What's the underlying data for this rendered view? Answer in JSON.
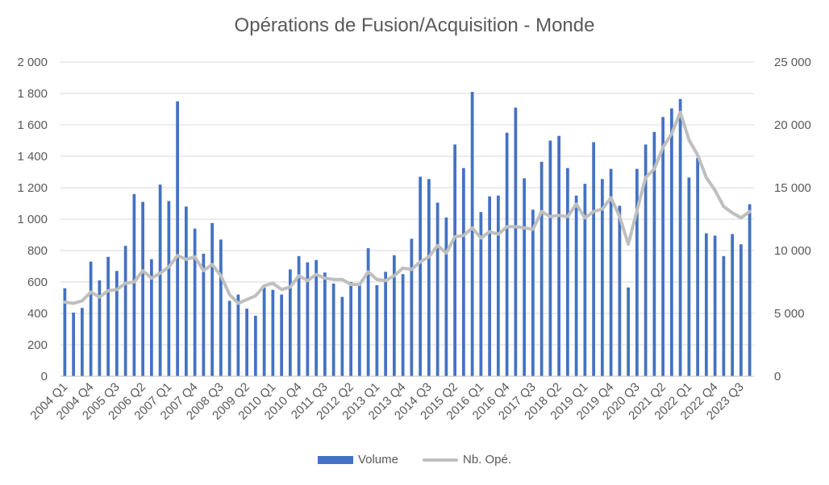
{
  "chart_data": {
    "type": "bar",
    "title": "Opérations de Fusion/Acquisition - Monde",
    "categories": [
      "2004 Q1",
      "2004 Q2",
      "2004 Q3",
      "2004 Q4",
      "2005 Q1",
      "2005 Q2",
      "2005 Q3",
      "2005 Q4",
      "2006 Q1",
      "2006 Q2",
      "2006 Q3",
      "2006 Q4",
      "2007 Q1",
      "2007 Q2",
      "2007 Q3",
      "2007 Q4",
      "2008 Q1",
      "2008 Q2",
      "2008 Q3",
      "2008 Q4",
      "2009 Q1",
      "2009 Q2",
      "2009 Q3",
      "2009 Q4",
      "2010 Q1",
      "2010 Q2",
      "2010 Q3",
      "2010 Q4",
      "2011 Q1",
      "2011 Q2",
      "2011 Q3",
      "2011 Q4",
      "2012 Q1",
      "2012 Q2",
      "2012 Q3",
      "2012 Q4",
      "2013 Q1",
      "2013 Q2",
      "2013 Q3",
      "2013 Q4",
      "2014 Q1",
      "2014 Q2",
      "2014 Q3",
      "2014 Q4",
      "2015 Q1",
      "2015 Q2",
      "2015 Q3",
      "2015 Q4",
      "2016 Q1",
      "2016 Q2",
      "2016 Q3",
      "2016 Q4",
      "2017 Q1",
      "2017 Q2",
      "2017 Q3",
      "2017 Q4",
      "2018 Q1",
      "2018 Q2",
      "2018 Q3",
      "2018 Q4",
      "2019 Q1",
      "2019 Q2",
      "2019 Q3",
      "2019 Q4",
      "2020 Q1",
      "2020 Q2",
      "2020 Q3",
      "2020 Q4",
      "2021 Q1",
      "2021 Q2",
      "2021 Q3",
      "2021 Q4",
      "2022 Q1",
      "2022 Q2",
      "2022 Q3",
      "2022 Q4",
      "2023 Q1",
      "2023 Q2",
      "2023 Q3",
      "2023 Q4"
    ],
    "x_tick_labels": [
      "2004 Q1",
      "2004 Q4",
      "2005 Q3",
      "2006 Q2",
      "2007 Q1",
      "2007 Q4",
      "2008 Q3",
      "2009 Q2",
      "2010 Q1",
      "2010 Q4",
      "2011 Q3",
      "2012 Q2",
      "2013 Q1",
      "2013 Q4",
      "2014 Q3",
      "2015 Q2",
      "2016 Q1",
      "2016 Q4",
      "2017 Q3",
      "2018 Q2",
      "2019 Q1",
      "2019 Q4",
      "2020 Q3",
      "2021 Q2",
      "2022 Q1",
      "2022 Q4",
      "2023 Q3"
    ],
    "series": [
      {
        "name": "Volume",
        "kind": "bar",
        "axis": "left",
        "color": "#4472c4",
        "values": [
          560,
          405,
          435,
          730,
          610,
          760,
          670,
          830,
          1160,
          1110,
          745,
          1220,
          1115,
          1750,
          1080,
          940,
          780,
          975,
          870,
          480,
          520,
          430,
          385,
          565,
          550,
          520,
          680,
          765,
          725,
          740,
          660,
          590,
          505,
          600,
          590,
          815,
          580,
          665,
          770,
          650,
          875,
          1270,
          1255,
          1105,
          1010,
          1475,
          1325,
          1810,
          1045,
          1145,
          1150,
          1550,
          1710,
          1260,
          1060,
          1365,
          1500,
          1530,
          1325,
          1150,
          1225,
          1490,
          1255,
          1320,
          1085,
          565,
          1320,
          1475,
          1555,
          1650,
          1705,
          1765,
          1265,
          1390,
          910,
          895,
          765,
          905,
          840,
          1095
        ]
      },
      {
        "name": "Nb. Opé.",
        "kind": "line",
        "axis": "right",
        "color": "#bfbfbf",
        "values": [
          5900,
          5800,
          6000,
          6700,
          6300,
          6800,
          6900,
          7400,
          7500,
          8400,
          7800,
          8200,
          8700,
          9600,
          9300,
          9500,
          8400,
          8900,
          8000,
          6500,
          5800,
          6100,
          6400,
          7200,
          7400,
          6900,
          7100,
          8000,
          7600,
          8100,
          7800,
          7700,
          7700,
          7300,
          7300,
          8300,
          7700,
          7600,
          8000,
          8600,
          8500,
          9100,
          9500,
          10400,
          9800,
          11100,
          11200,
          11800,
          11000,
          11500,
          11300,
          11900,
          11900,
          11800,
          11700,
          13100,
          12700,
          12800,
          12700,
          13700,
          12600,
          13100,
          13300,
          14200,
          12700,
          10500,
          13200,
          15800,
          16500,
          18200,
          19300,
          21000,
          18800,
          17600,
          15800,
          14800,
          13500,
          13000,
          12600,
          13100
        ]
      }
    ],
    "y_left": {
      "min": 0,
      "max": 2000,
      "ticks": [
        "0",
        "200",
        "400",
        "600",
        "800",
        "1 000",
        "1 200",
        "1 400",
        "1 600",
        "1 800",
        "2 000"
      ]
    },
    "y_right": {
      "min": 0,
      "max": 25000,
      "ticks": [
        "0",
        "5 000",
        "10 000",
        "15 000",
        "20 000",
        "25 000"
      ]
    },
    "legend": {
      "position": "bottom"
    },
    "grid": true
  }
}
